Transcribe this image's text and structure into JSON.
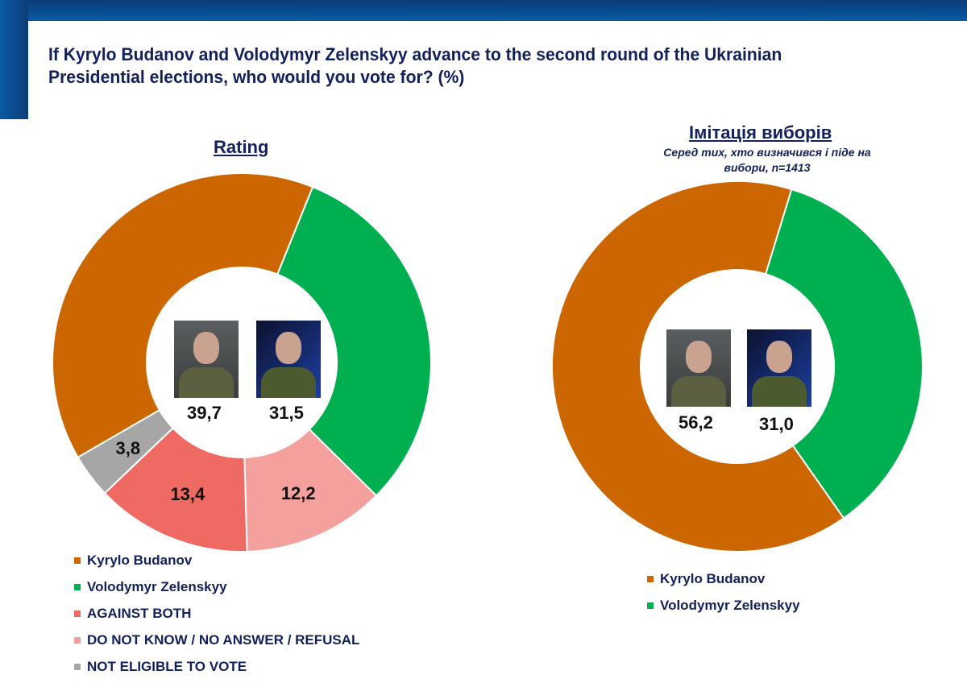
{
  "title": "If Kyrylo Budanov and Volodymyr Zelenskyy advance to the second round of the Ukrainian Presidential elections, who would you vote for? (%)",
  "chart_data": [
    {
      "type": "pie",
      "title": "Rating",
      "donut": true,
      "series": [
        {
          "name": "Volodymyr Zelenskyy",
          "value": 31.5,
          "label": "31,5",
          "color": "#00b050"
        },
        {
          "name": "DO NOT KNOW / NO ANSWER / REFUSAL",
          "value": 12.2,
          "label": "12,2",
          "color": "#f4a09c"
        },
        {
          "name": "AGAINST BOTH",
          "value": 13.4,
          "label": "13,4",
          "color": "#f06a64"
        },
        {
          "name": "NOT ELIGIBLE TO VOTE",
          "value": 3.8,
          "label": "3,8",
          "color": "#a6a6a6"
        },
        {
          "name": "Kyrylo Budanov",
          "value": 39.7,
          "label": "39,7",
          "color": "#cc6600"
        }
      ]
    },
    {
      "type": "pie",
      "title": "Імітація виборів",
      "subtitle": "Серед тих, хто визначився і піде на вибори, n=1413",
      "donut": true,
      "series": [
        {
          "name": "Volodymyr Zelenskyy",
          "value": 31.0,
          "label": "31,0",
          "color": "#00b050"
        },
        {
          "name": "Kyrylo Budanov",
          "value": 56.2,
          "label": "56,2",
          "color": "#cc6600"
        }
      ]
    }
  ],
  "legend1": [
    "Kyrylo Budanov",
    "Volodymyr Zelenskyy",
    "AGAINST BOTH",
    "DO NOT KNOW / NO ANSWER / REFUSAL",
    "NOT ELIGIBLE TO VOTE"
  ],
  "legend2": [
    "Kyrylo Budanov",
    "Volodymyr Zelenskyy"
  ]
}
